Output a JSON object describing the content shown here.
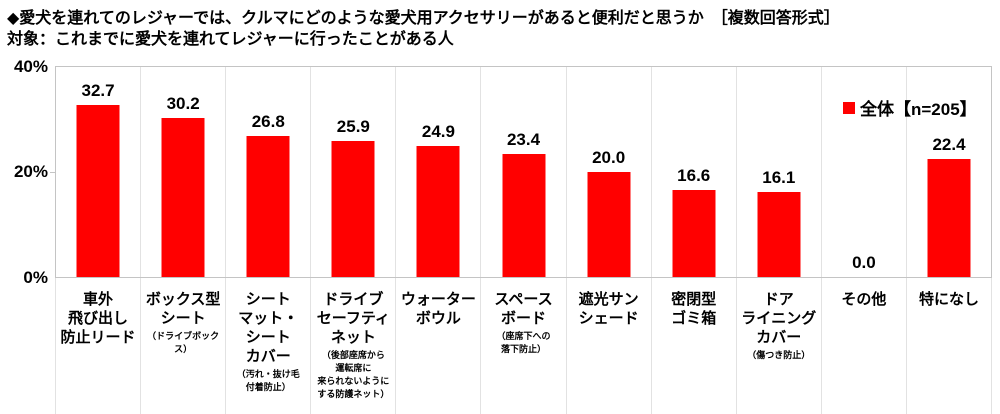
{
  "title": "◆愛犬を連れてのレジャーでは、クルマにどのような愛犬用アクセサリーがあると便利だと思うか　［複数回答形式］",
  "subtitle": "対象：これまでに愛犬を連れてレジャーに行ったことがある人",
  "legend": {
    "label": "全体【n=205】",
    "color": "#ff0000"
  },
  "y_axis": {
    "ticks": {
      "top": "40%",
      "mid": "20%",
      "bottom": "0%"
    },
    "max": 40
  },
  "colors": {
    "bar": "#ff0000",
    "axis_line": "#c4c4c4",
    "grid_line": "#e2e2e2",
    "text": "#000000"
  },
  "chart_data": {
    "type": "bar",
    "title": "◆愛犬を連れてのレジャーでは、クルマにどのような愛犬用アクセサリーがあると便利だと思うか［複数回答形式］",
    "subtitle": "対象：これまでに愛犬を連れてレジャーに行ったことがある人",
    "legend": "全体【n=205】",
    "legend_position": "top-right",
    "xlabel": "",
    "ylabel": "%",
    "ylim": [
      0,
      40
    ],
    "y_ticks": [
      "0%",
      "20%",
      "40%"
    ],
    "grid": "vertical-category-separators",
    "bar_color": "#ff0000",
    "categories": [
      "車外飛び出し防止リード",
      "ボックス型シート（ドライブボックス）",
      "シートマット・シートカバー（汚れ・抜け毛付着防止）",
      "ドライブセーフティネット（後部座席から運転席に来られないようにする防護ネット）",
      "ウォーターボウル",
      "スペースボード（座席下への落下防止）",
      "遮光サンシェード",
      "密閉型ゴミ箱",
      "ドアライニングカバー（傷つき防止）",
      "その他",
      "特になし"
    ],
    "values": [
      32.7,
      30.2,
      26.8,
      25.9,
      24.9,
      23.4,
      20.0,
      16.6,
      16.1,
      0.0,
      22.4
    ]
  },
  "columns": [
    {
      "value": 32.7,
      "label_lines": [
        "車外",
        "飛び出し",
        "防止リード"
      ],
      "sub_lines": []
    },
    {
      "value": 30.2,
      "label_lines": [
        "ボックス型",
        "シート"
      ],
      "sub_lines": [
        "（ドライブボックス）"
      ]
    },
    {
      "value": 26.8,
      "label_lines": [
        "シート",
        "マット・",
        "シート",
        "カバー"
      ],
      "sub_lines": [
        "（汚れ・抜け毛",
        "付着防止）"
      ]
    },
    {
      "value": 25.9,
      "label_lines": [
        "ドライブ",
        "セーフティ",
        "ネット"
      ],
      "sub_lines": [
        "（後部座席から",
        "運転席に",
        "来られないように",
        "する防護ネット）"
      ]
    },
    {
      "value": 24.9,
      "label_lines": [
        "ウォーター",
        "ボウル"
      ],
      "sub_lines": []
    },
    {
      "value": 23.4,
      "label_lines": [
        "スペース",
        "ボード"
      ],
      "sub_lines": [
        "（座席下への",
        "落下防止）"
      ]
    },
    {
      "value": 20.0,
      "label_lines": [
        "遮光サン",
        "シェード"
      ],
      "sub_lines": []
    },
    {
      "value": 16.6,
      "label_lines": [
        "密閉型",
        "ゴミ箱"
      ],
      "sub_lines": []
    },
    {
      "value": 16.1,
      "label_lines": [
        "ドア",
        "ライニング",
        "カバー"
      ],
      "sub_lines": [
        "（傷つき防止）"
      ]
    },
    {
      "value": 0.0,
      "label_lines": [
        "その他"
      ],
      "sub_lines": []
    },
    {
      "value": 22.4,
      "label_lines": [
        "特になし"
      ],
      "sub_lines": []
    }
  ]
}
